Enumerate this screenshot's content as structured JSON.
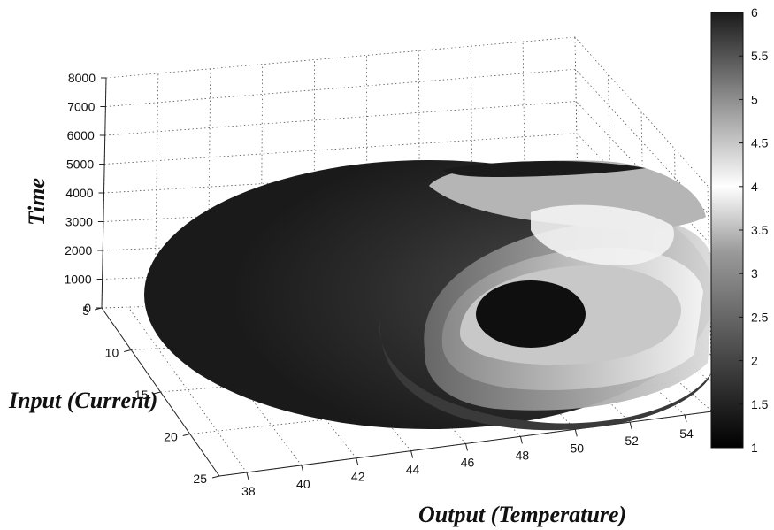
{
  "chart_data": {
    "type": "surface3d",
    "xlabel": "Output (Temperature)",
    "ylabel": "Input (Current)",
    "zlabel": "Time",
    "x_ticks": [
      38,
      40,
      42,
      44,
      46,
      48,
      50,
      52,
      54
    ],
    "y_ticks": [
      5,
      10,
      15,
      20,
      25
    ],
    "z_ticks": [
      0,
      1000,
      2000,
      3000,
      4000,
      5000,
      6000,
      7000,
      8000
    ],
    "xlim": [
      37,
      55
    ],
    "ylim": [
      5,
      25
    ],
    "zlim": [
      0,
      8000
    ],
    "colorbar": {
      "ticks": [
        1,
        1.5,
        2,
        2.5,
        3,
        3.5,
        4,
        4.5,
        5,
        5.5,
        6
      ],
      "range": [
        1,
        6
      ],
      "colormap": "gray"
    },
    "grid": true,
    "colors": {
      "surface_dark": "#1e1e1e",
      "surface_light": "#f2f2f2",
      "grid": "#555555",
      "axis": "#222222"
    }
  }
}
